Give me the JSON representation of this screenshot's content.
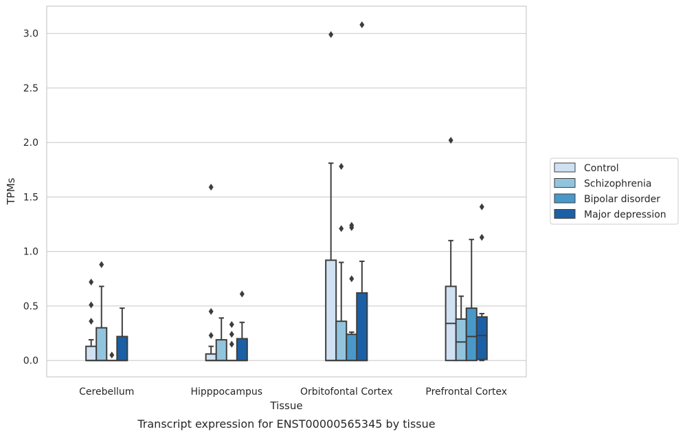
{
  "caption": "Transcript expression for ENST00000565345 by tissue",
  "chart_data": {
    "type": "box",
    "xlabel": "Tissue",
    "ylabel": "TPMs",
    "categories": [
      "Cerebellum",
      "Hipppocampus",
      "Orbitofontal Cortex",
      "Prefrontal Cortex"
    ],
    "ylim": [
      -0.15,
      3.25
    ],
    "yticks": [
      0.0,
      0.5,
      1.0,
      1.5,
      2.0,
      2.5,
      3.0
    ],
    "ytick_labels": [
      "0.0",
      "0.5",
      "1.0",
      "1.5",
      "2.0",
      "2.5",
      "3.0"
    ],
    "grid": "horizontal",
    "legend_position": "right",
    "series": [
      {
        "name": "Control",
        "color": "#cfe1f2",
        "boxes": [
          {
            "whislo": 0.0,
            "q1": 0.0,
            "med": 0.0,
            "q3": 0.13,
            "whishi": 0.19,
            "fliers": [
              0.36,
              0.51,
              0.72
            ]
          },
          {
            "whislo": 0.0,
            "q1": 0.0,
            "med": 0.0,
            "q3": 0.06,
            "whishi": 0.13,
            "fliers": [
              0.23,
              0.45,
              1.59
            ]
          },
          {
            "whislo": 0.0,
            "q1": 0.0,
            "med": 0.0,
            "q3": 0.92,
            "whishi": 1.81,
            "fliers": [
              2.99
            ]
          },
          {
            "whislo": 0.0,
            "q1": 0.0,
            "med": 0.34,
            "q3": 0.68,
            "whishi": 1.1,
            "fliers": [
              2.02
            ]
          }
        ]
      },
      {
        "name": "Schizophrenia",
        "color": "#93c4de",
        "boxes": [
          {
            "whislo": 0.0,
            "q1": 0.0,
            "med": 0.0,
            "q3": 0.3,
            "whishi": 0.68,
            "fliers": [
              0.88
            ]
          },
          {
            "whislo": 0.0,
            "q1": 0.0,
            "med": 0.0,
            "q3": 0.19,
            "whishi": 0.39,
            "fliers": []
          },
          {
            "whislo": 0.0,
            "q1": 0.0,
            "med": 0.0,
            "q3": 0.36,
            "whishi": 0.9,
            "fliers": [
              1.21,
              1.78
            ]
          },
          {
            "whislo": 0.0,
            "q1": 0.0,
            "med": 0.17,
            "q3": 0.38,
            "whishi": 0.59,
            "fliers": []
          }
        ]
      },
      {
        "name": "Bipolar disorder",
        "color": "#4a98c9",
        "boxes": [
          {
            "whislo": 0.0,
            "q1": 0.0,
            "med": 0.0,
            "q3": 0.0,
            "whishi": 0.0,
            "fliers": [
              0.05
            ]
          },
          {
            "whislo": 0.0,
            "q1": 0.0,
            "med": 0.0,
            "q3": 0.0,
            "whishi": 0.0,
            "fliers": [
              0.15,
              0.24,
              0.33
            ]
          },
          {
            "whislo": 0.0,
            "q1": 0.0,
            "med": 0.0,
            "q3": 0.24,
            "whishi": 0.26,
            "fliers": [
              0.75,
              1.22,
              1.24
            ]
          },
          {
            "whislo": 0.0,
            "q1": 0.0,
            "med": 0.22,
            "q3": 0.48,
            "whishi": 1.11,
            "fliers": []
          }
        ]
      },
      {
        "name": "Major depression",
        "color": "#1b60a5",
        "boxes": [
          {
            "whislo": 0.0,
            "q1": 0.0,
            "med": 0.0,
            "q3": 0.22,
            "whishi": 0.48,
            "fliers": []
          },
          {
            "whislo": 0.0,
            "q1": 0.0,
            "med": 0.0,
            "q3": 0.2,
            "whishi": 0.35,
            "fliers": [
              0.61
            ]
          },
          {
            "whislo": 0.0,
            "q1": 0.0,
            "med": 0.0,
            "q3": 0.62,
            "whishi": 0.91,
            "fliers": [
              3.08
            ]
          },
          {
            "whislo": 0.0,
            "q1": 0.01,
            "med": 0.23,
            "q3": 0.4,
            "whishi": 0.43,
            "fliers": [
              1.13,
              1.41
            ]
          }
        ]
      }
    ]
  }
}
